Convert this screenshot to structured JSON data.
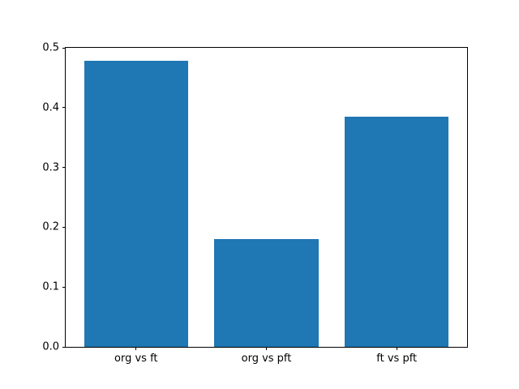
{
  "chart_data": {
    "type": "bar",
    "title": "",
    "xlabel": "",
    "ylabel": "",
    "categories": [
      "org vs ft",
      "org vs pft",
      "ft vs pft"
    ],
    "values": [
      0.478,
      0.18,
      0.385
    ],
    "bar_positions": [
      0,
      1,
      2
    ],
    "bar_width_data_units": 0.8,
    "xlim": [
      -0.54,
      2.54
    ],
    "ylim": [
      0.0,
      0.5
    ],
    "yticks": [
      0.0,
      0.1,
      0.2,
      0.3,
      0.4,
      0.5
    ],
    "ytick_labels": [
      "0.0",
      "0.1",
      "0.2",
      "0.3",
      "0.4",
      "0.5"
    ],
    "bar_color": "#1f77b4",
    "spine_color": "#000000",
    "text_color": "#000000",
    "background_color": "#ffffff",
    "grid": false,
    "legend": null
  }
}
